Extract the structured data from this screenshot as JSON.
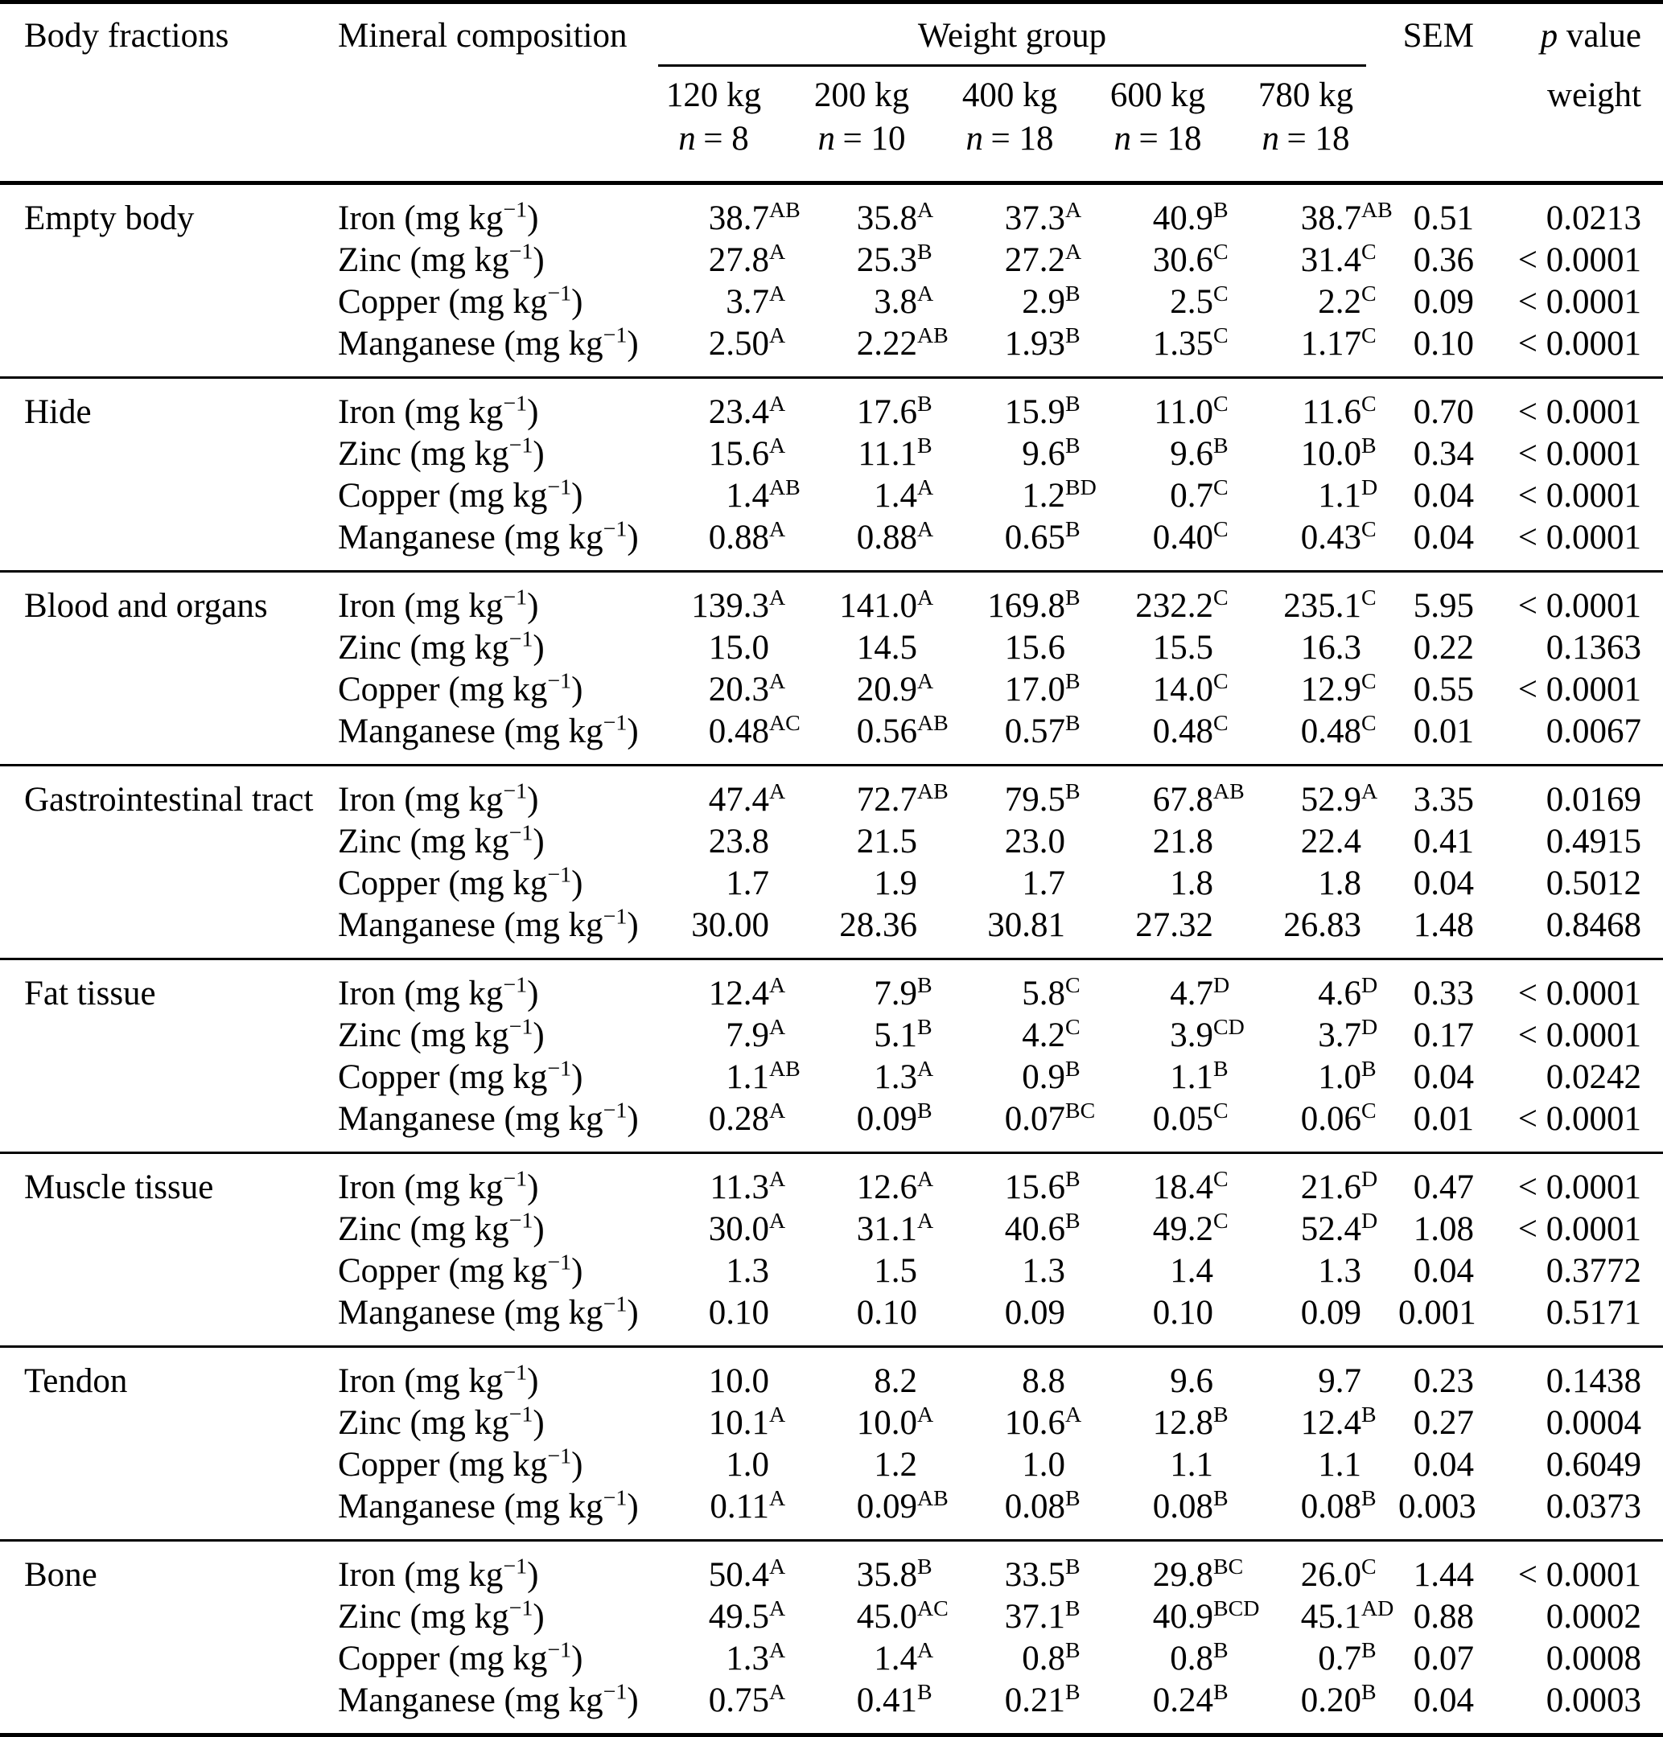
{
  "header": {
    "body_fractions": "Body fractions",
    "mineral_composition": "Mineral composition",
    "weight_group": "Weight group",
    "sem": "SEM",
    "p_var": "p",
    "p_rest": "value",
    "p_sub": "weight",
    "groups": [
      {
        "weight": "120 kg",
        "n_var": "n",
        "n_eq": "= 8"
      },
      {
        "weight": "200 kg",
        "n_var": "n",
        "n_eq": "= 10"
      },
      {
        "weight": "400 kg",
        "n_var": "n",
        "n_eq": "= 18"
      },
      {
        "weight": "600 kg",
        "n_var": "n",
        "n_eq": "= 18"
      },
      {
        "weight": "780 kg",
        "n_var": "n",
        "n_eq": "= 18"
      }
    ]
  },
  "units": {
    "prefix": "(mg kg",
    "sup": "−1",
    "suffix": ")"
  },
  "sections": [
    {
      "name": "Empty body",
      "rows": [
        {
          "mineral": "Iron",
          "values": [
            [
              "38.7",
              "AB"
            ],
            [
              "35.8",
              "A"
            ],
            [
              "37.3",
              "A"
            ],
            [
              "40.9",
              "B"
            ],
            [
              "38.7",
              "AB"
            ]
          ],
          "sem": "0.51",
          "p": "0.0213"
        },
        {
          "mineral": "Zinc",
          "values": [
            [
              "27.8",
              "A"
            ],
            [
              "25.3",
              "B"
            ],
            [
              "27.2",
              "A"
            ],
            [
              "30.6",
              "C"
            ],
            [
              "31.4",
              "C"
            ]
          ],
          "sem": "0.36",
          "p": "< 0.0001"
        },
        {
          "mineral": "Copper",
          "values": [
            [
              "3.7",
              "A"
            ],
            [
              "3.8",
              "A"
            ],
            [
              "2.9",
              "B"
            ],
            [
              "2.5",
              "C"
            ],
            [
              "2.2",
              "C"
            ]
          ],
          "sem": "0.09",
          "p": "< 0.0001"
        },
        {
          "mineral": "Manganese",
          "values": [
            [
              "2.50",
              "A"
            ],
            [
              "2.22",
              "AB"
            ],
            [
              "1.93",
              "B"
            ],
            [
              "1.35",
              "C"
            ],
            [
              "1.17",
              "C"
            ]
          ],
          "sem": "0.10",
          "p": "< 0.0001"
        }
      ]
    },
    {
      "name": "Hide",
      "rows": [
        {
          "mineral": "Iron",
          "values": [
            [
              "23.4",
              "A"
            ],
            [
              "17.6",
              "B"
            ],
            [
              "15.9",
              "B"
            ],
            [
              "11.0",
              "C"
            ],
            [
              "11.6",
              "C"
            ]
          ],
          "sem": "0.70",
          "p": "< 0.0001"
        },
        {
          "mineral": "Zinc",
          "values": [
            [
              "15.6",
              "A"
            ],
            [
              "11.1",
              "B"
            ],
            [
              "9.6",
              "B"
            ],
            [
              "9.6",
              "B"
            ],
            [
              "10.0",
              "B"
            ]
          ],
          "sem": "0.34",
          "p": "< 0.0001"
        },
        {
          "mineral": "Copper",
          "values": [
            [
              "1.4",
              "AB"
            ],
            [
              "1.4",
              "A"
            ],
            [
              "1.2",
              "BD"
            ],
            [
              "0.7",
              "C"
            ],
            [
              "1.1",
              "D"
            ]
          ],
          "sem": "0.04",
          "p": "< 0.0001"
        },
        {
          "mineral": "Manganese",
          "values": [
            [
              "0.88",
              "A"
            ],
            [
              "0.88",
              "A"
            ],
            [
              "0.65",
              "B"
            ],
            [
              "0.40",
              "C"
            ],
            [
              "0.43",
              "C"
            ]
          ],
          "sem": "0.04",
          "p": "< 0.0001"
        }
      ]
    },
    {
      "name": "Blood and organs",
      "rows": [
        {
          "mineral": "Iron",
          "values": [
            [
              "139.3",
              "A"
            ],
            [
              "141.0",
              "A"
            ],
            [
              "169.8",
              "B"
            ],
            [
              "232.2",
              "C"
            ],
            [
              "235.1",
              "C"
            ]
          ],
          "sem": "5.95",
          "p": "< 0.0001"
        },
        {
          "mineral": "Zinc",
          "values": [
            [
              "15.0",
              ""
            ],
            [
              "14.5",
              ""
            ],
            [
              "15.6",
              ""
            ],
            [
              "15.5",
              ""
            ],
            [
              "16.3",
              ""
            ]
          ],
          "sem": "0.22",
          "p": "0.1363"
        },
        {
          "mineral": "Copper",
          "values": [
            [
              "20.3",
              "A"
            ],
            [
              "20.9",
              "A"
            ],
            [
              "17.0",
              "B"
            ],
            [
              "14.0",
              "C"
            ],
            [
              "12.9",
              "C"
            ]
          ],
          "sem": "0.55",
          "p": "< 0.0001"
        },
        {
          "mineral": "Manganese",
          "values": [
            [
              "0.48",
              "AC"
            ],
            [
              "0.56",
              "AB"
            ],
            [
              "0.57",
              "B"
            ],
            [
              "0.48",
              "C"
            ],
            [
              "0.48",
              "C"
            ]
          ],
          "sem": "0.01",
          "p": "0.0067"
        }
      ]
    },
    {
      "name": "Gastrointestinal tract",
      "rows": [
        {
          "mineral": "Iron",
          "values": [
            [
              "47.4",
              "A"
            ],
            [
              "72.7",
              "AB"
            ],
            [
              "79.5",
              "B"
            ],
            [
              "67.8",
              "AB"
            ],
            [
              "52.9",
              "A"
            ]
          ],
          "sem": "3.35",
          "p": "0.0169"
        },
        {
          "mineral": "Zinc",
          "values": [
            [
              "23.8",
              ""
            ],
            [
              "21.5",
              ""
            ],
            [
              "23.0",
              ""
            ],
            [
              "21.8",
              ""
            ],
            [
              "22.4",
              ""
            ]
          ],
          "sem": "0.41",
          "p": "0.4915"
        },
        {
          "mineral": "Copper",
          "values": [
            [
              "1.7",
              ""
            ],
            [
              "1.9",
              ""
            ],
            [
              "1.7",
              ""
            ],
            [
              "1.8",
              ""
            ],
            [
              "1.8",
              ""
            ]
          ],
          "sem": "0.04",
          "p": "0.5012"
        },
        {
          "mineral": "Manganese",
          "values": [
            [
              "30.00",
              ""
            ],
            [
              "28.36",
              ""
            ],
            [
              "30.81",
              ""
            ],
            [
              "27.32",
              ""
            ],
            [
              "26.83",
              ""
            ]
          ],
          "sem": "1.48",
          "p": "0.8468"
        }
      ]
    },
    {
      "name": "Fat tissue",
      "rows": [
        {
          "mineral": "Iron",
          "values": [
            [
              "12.4",
              "A"
            ],
            [
              "7.9",
              "B"
            ],
            [
              "5.8",
              "C"
            ],
            [
              "4.7",
              "D"
            ],
            [
              "4.6",
              "D"
            ]
          ],
          "sem": "0.33",
          "p": "< 0.0001"
        },
        {
          "mineral": "Zinc",
          "values": [
            [
              "7.9",
              "A"
            ],
            [
              "5.1",
              "B"
            ],
            [
              "4.2",
              "C"
            ],
            [
              "3.9",
              "CD"
            ],
            [
              "3.7",
              "D"
            ]
          ],
          "sem": "0.17",
          "p": "< 0.0001"
        },
        {
          "mineral": "Copper",
          "values": [
            [
              "1.1",
              "AB"
            ],
            [
              "1.3",
              "A"
            ],
            [
              "0.9",
              "B"
            ],
            [
              "1.1",
              "B"
            ],
            [
              "1.0",
              "B"
            ]
          ],
          "sem": "0.04",
          "p": "0.0242"
        },
        {
          "mineral": "Manganese",
          "values": [
            [
              "0.28",
              "A"
            ],
            [
              "0.09",
              "B"
            ],
            [
              "0.07",
              "BC"
            ],
            [
              "0.05",
              "C"
            ],
            [
              "0.06",
              "C"
            ]
          ],
          "sem": "0.01",
          "p": "< 0.0001"
        }
      ]
    },
    {
      "name": "Muscle tissue",
      "rows": [
        {
          "mineral": "Iron",
          "values": [
            [
              "11.3",
              "A"
            ],
            [
              "12.6",
              "A"
            ],
            [
              "15.6",
              "B"
            ],
            [
              "18.4",
              "C"
            ],
            [
              "21.6",
              "D"
            ]
          ],
          "sem": "0.47",
          "p": "< 0.0001"
        },
        {
          "mineral": "Zinc",
          "values": [
            [
              "30.0",
              "A"
            ],
            [
              "31.1",
              "A"
            ],
            [
              "40.6",
              "B"
            ],
            [
              "49.2",
              "C"
            ],
            [
              "52.4",
              "D"
            ]
          ],
          "sem": "1.08",
          "p": "< 0.0001"
        },
        {
          "mineral": "Copper",
          "values": [
            [
              "1.3",
              ""
            ],
            [
              "1.5",
              ""
            ],
            [
              "1.3",
              ""
            ],
            [
              "1.4",
              ""
            ],
            [
              "1.3",
              ""
            ]
          ],
          "sem": "0.04",
          "p": "0.3772"
        },
        {
          "mineral": "Manganese",
          "values": [
            [
              "0.10",
              ""
            ],
            [
              "0.10",
              ""
            ],
            [
              "0.09",
              ""
            ],
            [
              "0.10",
              ""
            ],
            [
              "0.09",
              ""
            ]
          ],
          "sem": "0.001",
          "p": "0.5171"
        }
      ]
    },
    {
      "name": "Tendon",
      "rows": [
        {
          "mineral": "Iron",
          "values": [
            [
              "10.0",
              ""
            ],
            [
              "8.2",
              ""
            ],
            [
              "8.8",
              ""
            ],
            [
              "9.6",
              ""
            ],
            [
              "9.7",
              ""
            ]
          ],
          "sem": "0.23",
          "p": "0.1438"
        },
        {
          "mineral": "Zinc",
          "values": [
            [
              "10.1",
              "A"
            ],
            [
              "10.0",
              "A"
            ],
            [
              "10.6",
              "A"
            ],
            [
              "12.8",
              "B"
            ],
            [
              "12.4",
              "B"
            ]
          ],
          "sem": "0.27",
          "p": "0.0004"
        },
        {
          "mineral": "Copper",
          "values": [
            [
              "1.0",
              ""
            ],
            [
              "1.2",
              ""
            ],
            [
              "1.0",
              ""
            ],
            [
              "1.1",
              ""
            ],
            [
              "1.1",
              ""
            ]
          ],
          "sem": "0.04",
          "p": "0.6049"
        },
        {
          "mineral": "Manganese",
          "values": [
            [
              "0.11",
              "A"
            ],
            [
              "0.09",
              "AB"
            ],
            [
              "0.08",
              "B"
            ],
            [
              "0.08",
              "B"
            ],
            [
              "0.08",
              "B"
            ]
          ],
          "sem": "0.003",
          "p": "0.0373"
        }
      ]
    },
    {
      "name": "Bone",
      "rows": [
        {
          "mineral": "Iron",
          "values": [
            [
              "50.4",
              "A"
            ],
            [
              "35.8",
              "B"
            ],
            [
              "33.5",
              "B"
            ],
            [
              "29.8",
              "BC"
            ],
            [
              "26.0",
              "C"
            ]
          ],
          "sem": "1.44",
          "p": "< 0.0001"
        },
        {
          "mineral": "Zinc",
          "values": [
            [
              "49.5",
              "A"
            ],
            [
              "45.0",
              "AC"
            ],
            [
              "37.1",
              "B"
            ],
            [
              "40.9",
              "BCD"
            ],
            [
              "45.1",
              "AD"
            ]
          ],
          "sem": "0.88",
          "p": "0.0002"
        },
        {
          "mineral": "Copper",
          "values": [
            [
              "1.3",
              "A"
            ],
            [
              "1.4",
              "A"
            ],
            [
              "0.8",
              "B"
            ],
            [
              "0.8",
              "B"
            ],
            [
              "0.7",
              "B"
            ]
          ],
          "sem": "0.07",
          "p": "0.0008"
        },
        {
          "mineral": "Manganese",
          "values": [
            [
              "0.75",
              "A"
            ],
            [
              "0.41",
              "B"
            ],
            [
              "0.21",
              "B"
            ],
            [
              "0.24",
              "B"
            ],
            [
              "0.20",
              "B"
            ]
          ],
          "sem": "0.04",
          "p": "0.0003"
        }
      ]
    }
  ]
}
